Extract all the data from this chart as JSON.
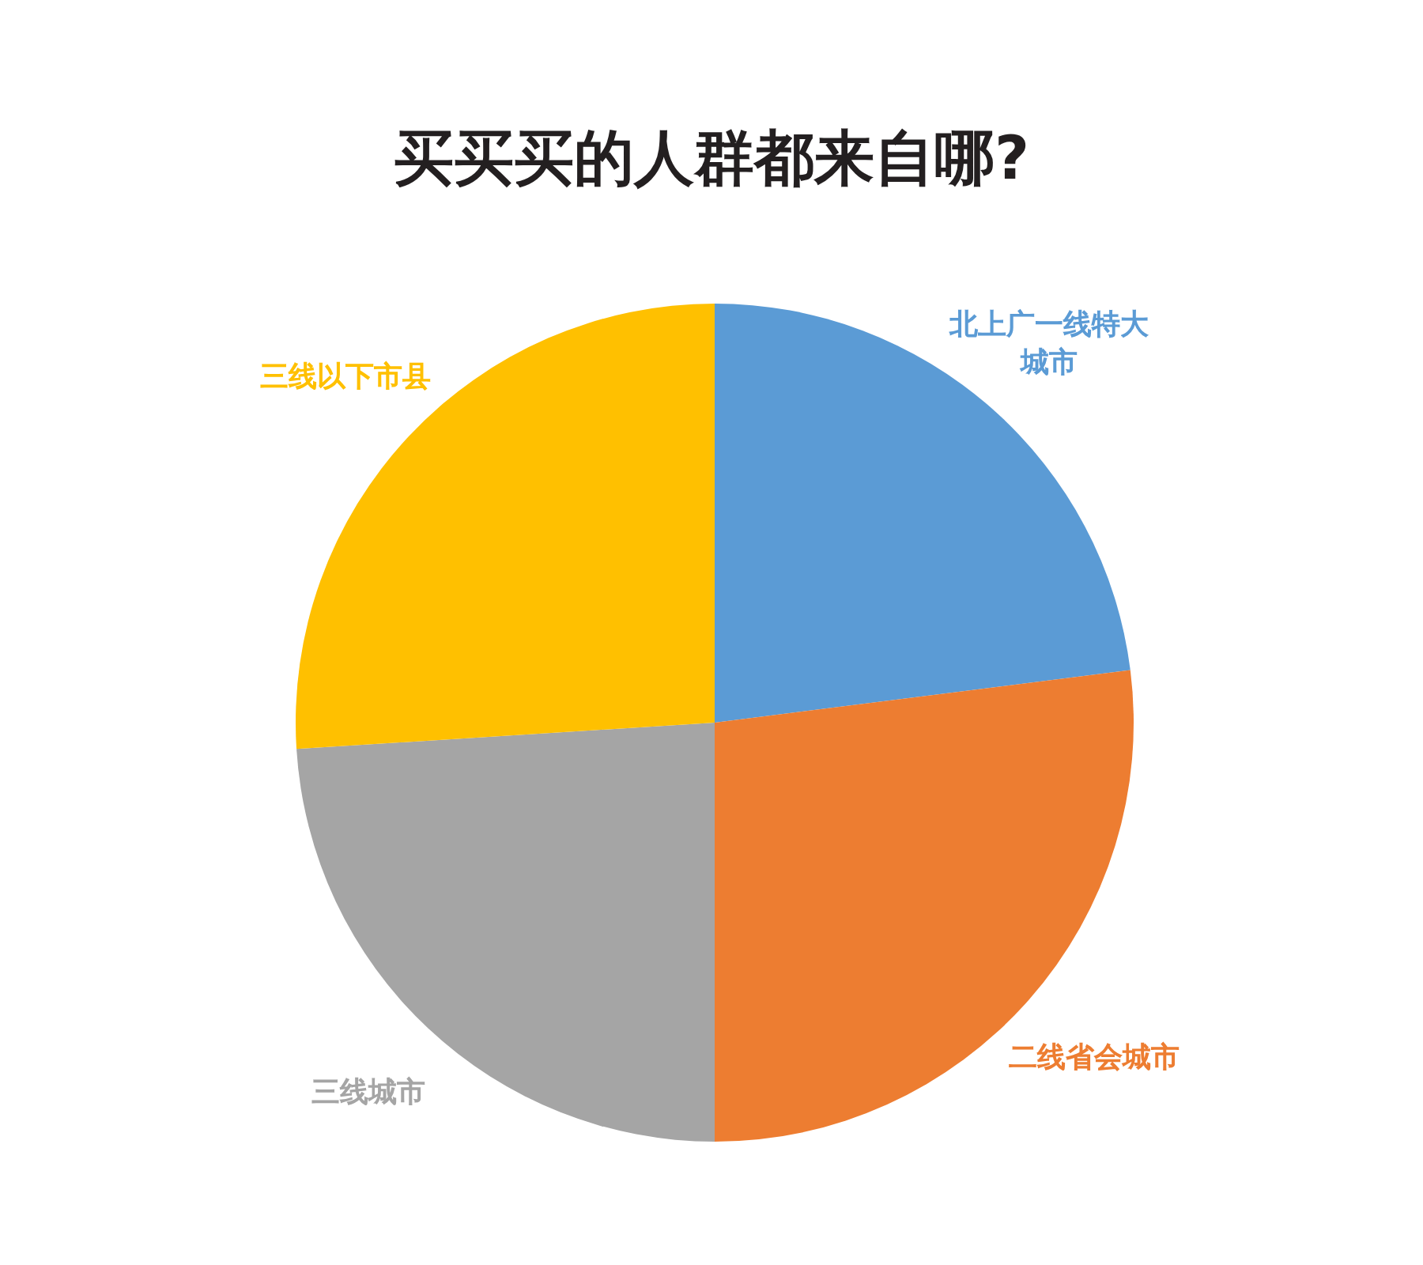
{
  "chart_data": {
    "type": "pie",
    "title": "买买买的人群都来自哪?",
    "categories": [
      "北上广一线特大城市",
      "二线省会城市",
      "三线城市",
      "三线以下市县"
    ],
    "values": [
      23,
      27,
      24,
      26
    ],
    "colors": [
      "#5b9bd5",
      "#ed7d31",
      "#a5a5a5",
      "#ffc000"
    ]
  }
}
